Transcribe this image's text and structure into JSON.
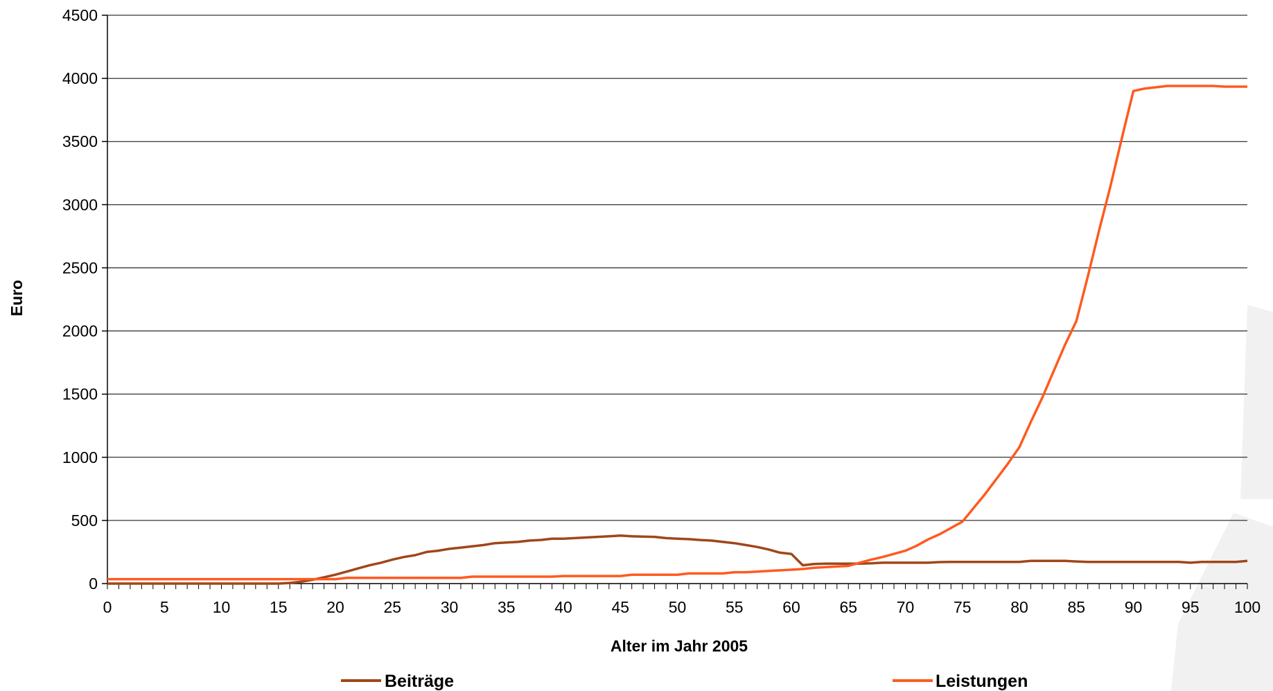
{
  "chart_data": {
    "type": "line",
    "xlabel": "Alter im Jahr 2005",
    "ylabel": "Euro",
    "xlim": [
      0,
      100
    ],
    "ylim": [
      0,
      4500
    ],
    "xticks": [
      0,
      5,
      10,
      15,
      20,
      25,
      30,
      35,
      40,
      45,
      50,
      55,
      60,
      65,
      70,
      75,
      80,
      85,
      90,
      95,
      100
    ],
    "yticks": [
      0,
      500,
      1000,
      1500,
      2000,
      2500,
      3000,
      3500,
      4000,
      4500
    ],
    "grid": "horizontal",
    "legend_position": "bottom",
    "series": [
      {
        "name": "Beiträge",
        "color": "#a0461a",
        "points": [
          [
            0,
            0
          ],
          [
            15,
            0
          ],
          [
            16,
            5
          ],
          [
            17,
            15
          ],
          [
            18,
            30
          ],
          [
            19,
            50
          ],
          [
            20,
            70
          ],
          [
            21,
            95
          ],
          [
            22,
            120
          ],
          [
            23,
            145
          ],
          [
            24,
            165
          ],
          [
            25,
            190
          ],
          [
            26,
            210
          ],
          [
            27,
            225
          ],
          [
            28,
            250
          ],
          [
            29,
            260
          ],
          [
            30,
            275
          ],
          [
            31,
            285
          ],
          [
            32,
            295
          ],
          [
            33,
            305
          ],
          [
            34,
            320
          ],
          [
            35,
            325
          ],
          [
            36,
            330
          ],
          [
            37,
            340
          ],
          [
            38,
            345
          ],
          [
            39,
            355
          ],
          [
            40,
            355
          ],
          [
            41,
            360
          ],
          [
            42,
            365
          ],
          [
            43,
            370
          ],
          [
            44,
            375
          ],
          [
            45,
            380
          ],
          [
            46,
            375
          ],
          [
            47,
            372
          ],
          [
            48,
            370
          ],
          [
            49,
            360
          ],
          [
            50,
            355
          ],
          [
            51,
            352
          ],
          [
            52,
            345
          ],
          [
            53,
            340
          ],
          [
            54,
            330
          ],
          [
            55,
            320
          ],
          [
            56,
            305
          ],
          [
            57,
            290
          ],
          [
            58,
            270
          ],
          [
            59,
            245
          ],
          [
            60,
            235
          ],
          [
            61,
            145
          ],
          [
            62,
            155
          ],
          [
            63,
            158
          ],
          [
            64,
            158
          ],
          [
            65,
            158
          ],
          [
            66,
            158
          ],
          [
            67,
            160
          ],
          [
            68,
            165
          ],
          [
            69,
            165
          ],
          [
            70,
            165
          ],
          [
            71,
            165
          ],
          [
            72,
            165
          ],
          [
            73,
            170
          ],
          [
            74,
            172
          ],
          [
            75,
            172
          ],
          [
            76,
            172
          ],
          [
            77,
            172
          ],
          [
            78,
            172
          ],
          [
            79,
            172
          ],
          [
            80,
            172
          ],
          [
            81,
            180
          ],
          [
            82,
            180
          ],
          [
            83,
            180
          ],
          [
            84,
            180
          ],
          [
            85,
            175
          ],
          [
            86,
            172
          ],
          [
            87,
            172
          ],
          [
            88,
            172
          ],
          [
            89,
            172
          ],
          [
            90,
            172
          ],
          [
            91,
            172
          ],
          [
            92,
            172
          ],
          [
            93,
            172
          ],
          [
            94,
            172
          ],
          [
            95,
            165
          ],
          [
            96,
            172
          ],
          [
            97,
            172
          ],
          [
            98,
            172
          ],
          [
            99,
            172
          ],
          [
            100,
            180
          ]
        ]
      },
      {
        "name": "Leistungen",
        "color": "#ff5a1f",
        "points": [
          [
            0,
            35
          ],
          [
            10,
            35
          ],
          [
            20,
            35
          ],
          [
            21,
            45
          ],
          [
            30,
            45
          ],
          [
            31,
            45
          ],
          [
            32,
            55
          ],
          [
            39,
            55
          ],
          [
            40,
            60
          ],
          [
            45,
            60
          ],
          [
            46,
            70
          ],
          [
            50,
            70
          ],
          [
            51,
            80
          ],
          [
            54,
            80
          ],
          [
            55,
            90
          ],
          [
            56,
            90
          ],
          [
            57,
            95
          ],
          [
            58,
            100
          ],
          [
            59,
            105
          ],
          [
            60,
            110
          ],
          [
            61,
            115
          ],
          [
            62,
            125
          ],
          [
            63,
            130
          ],
          [
            64,
            135
          ],
          [
            65,
            140
          ],
          [
            66,
            165
          ],
          [
            67,
            190
          ],
          [
            68,
            210
          ],
          [
            69,
            235
          ],
          [
            70,
            260
          ],
          [
            71,
            300
          ],
          [
            72,
            350
          ],
          [
            73,
            390
          ],
          [
            74,
            440
          ],
          [
            75,
            490
          ],
          [
            76,
            600
          ],
          [
            77,
            710
          ],
          [
            78,
            830
          ],
          [
            79,
            950
          ],
          [
            80,
            1080
          ],
          [
            81,
            1280
          ],
          [
            82,
            1470
          ],
          [
            83,
            1680
          ],
          [
            84,
            1890
          ],
          [
            85,
            2080
          ],
          [
            86,
            2430
          ],
          [
            87,
            2800
          ],
          [
            88,
            3150
          ],
          [
            89,
            3530
          ],
          [
            90,
            3900
          ],
          [
            91,
            3920
          ],
          [
            92,
            3930
          ],
          [
            93,
            3940
          ],
          [
            94,
            3940
          ],
          [
            95,
            3940
          ],
          [
            96,
            3940
          ],
          [
            97,
            3940
          ],
          [
            98,
            3935
          ],
          [
            99,
            3935
          ],
          [
            100,
            3935
          ]
        ]
      }
    ]
  }
}
